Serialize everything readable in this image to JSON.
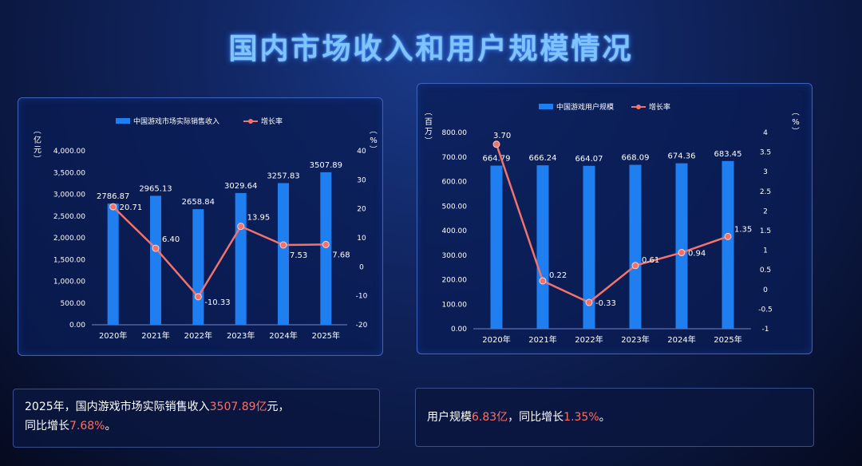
{
  "title": "国内市场收入和用户规模情况",
  "colors": {
    "bar": "#1f7ff0",
    "line": "#f2736b",
    "text": "#ffffff",
    "highlight": "#ff6f64"
  },
  "chart_data": [
    {
      "type": "bar",
      "categories": [
        "2020年",
        "2021年",
        "2022年",
        "2023年",
        "2024年",
        "2025年"
      ],
      "series": [
        {
          "name": "中国游戏市场实际销售收入",
          "type": "bar",
          "axis": "left",
          "values": [
            2786.87,
            2965.13,
            2658.84,
            3029.64,
            3257.83,
            3507.89
          ],
          "labels": [
            "2786.87",
            "2965.13",
            "2658.84",
            "3029.64",
            "3257.83",
            "3507.89"
          ]
        },
        {
          "name": "增长率",
          "type": "line",
          "axis": "right",
          "values": [
            20.71,
            6.4,
            -10.33,
            13.95,
            7.53,
            7.68
          ],
          "labels": [
            "20.71",
            "6.40",
            "-10.33",
            "13.95",
            "7.53",
            "7.68"
          ]
        }
      ],
      "ylabel_left": "（亿元）",
      "ylabel_right": "（%）",
      "ylim_left": [
        0,
        4000
      ],
      "yticks_left": [
        "4,000.00",
        "3,500.00",
        "3,000.00",
        "2,500.00",
        "2,000.00",
        "1,500.00",
        "1,000.00",
        "500.00",
        "0.00"
      ],
      "ylim_right": [
        -20,
        40
      ],
      "yticks_right": [
        "40",
        "30",
        "20",
        "10",
        "0",
        "-10",
        "-20"
      ],
      "legend": "top-center"
    },
    {
      "type": "bar",
      "categories": [
        "2020年",
        "2021年",
        "2022年",
        "2023年",
        "2024年",
        "2025年"
      ],
      "series": [
        {
          "name": "中国游戏用户规模",
          "type": "bar",
          "axis": "left",
          "values": [
            664.79,
            666.24,
            664.07,
            668.09,
            674.36,
            683.45
          ],
          "labels": [
            "664.79",
            "666.24",
            "664.07",
            "668.09",
            "674.36",
            "683.45"
          ]
        },
        {
          "name": "增长率",
          "type": "line",
          "axis": "right",
          "values": [
            3.7,
            0.22,
            -0.33,
            0.61,
            0.94,
            1.35
          ],
          "labels": [
            "3.70",
            "0.22",
            "-0.33",
            "0.61",
            "0.94",
            "1.35"
          ]
        }
      ],
      "ylabel_left": "（百万）",
      "ylabel_right": "（%）",
      "ylim_left": [
        0,
        800
      ],
      "yticks_left": [
        "800.00",
        "700.00",
        "600.00",
        "500.00",
        "400.00",
        "300.00",
        "200.00",
        "100.00",
        "0.00"
      ],
      "ylim_right": [
        -1,
        4
      ],
      "yticks_right": [
        "4",
        "3.5",
        "3",
        "2.5",
        "2",
        "1.5",
        "1",
        "0.5",
        "0",
        "-0.5",
        "-1"
      ],
      "legend": "top-center"
    }
  ],
  "notes": {
    "left": {
      "part1": "2025年，国内游戏市场实际销售收入",
      "value": "3507.89亿",
      "part2": "元，",
      "part3": "同比增长",
      "pct": "7.68%",
      "part4": "。"
    },
    "right": {
      "part1": "用户规模",
      "value": "6.83亿",
      "part2": "，同比增长",
      "pct": "1.35%",
      "part3": "。"
    }
  }
}
